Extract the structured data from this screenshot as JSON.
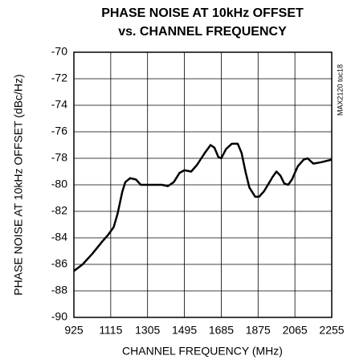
{
  "chart_data": {
    "type": "line",
    "title": [
      "PHASE NOISE AT 10kHz OFFSET",
      "vs. CHANNEL FREQUENCY"
    ],
    "xlabel": "CHANNEL FREQUENCY (MHz)",
    "ylabel": "PHASE NOISE AT 10kHz OFFSET (dBc/Hz)",
    "annotation": "MAX2120 toc18",
    "x": [
      925,
      970,
      1020,
      1070,
      1100,
      1130,
      1150,
      1175,
      1190,
      1215,
      1245,
      1270,
      1305,
      1380,
      1410,
      1440,
      1470,
      1495,
      1530,
      1560,
      1600,
      1630,
      1650,
      1670,
      1685,
      1710,
      1740,
      1770,
      1790,
      1810,
      1830,
      1860,
      1880,
      1905,
      1930,
      1950,
      1970,
      1990,
      2010,
      2030,
      2050,
      2080,
      2110,
      2130,
      2160,
      2200,
      2255
    ],
    "series": [
      {
        "name": "phase noise",
        "color": "#000000",
        "values": [
          -86.5,
          -86.0,
          -85.2,
          -84.3,
          -83.8,
          -83.2,
          -82.2,
          -80.5,
          -79.8,
          -79.5,
          -79.6,
          -80.0,
          -80.0,
          -80.0,
          -80.1,
          -79.8,
          -79.1,
          -78.9,
          -79.0,
          -78.5,
          -77.6,
          -77.0,
          -77.2,
          -77.9,
          -78.0,
          -77.3,
          -76.9,
          -76.9,
          -77.6,
          -79.0,
          -80.2,
          -80.9,
          -80.9,
          -80.5,
          -79.9,
          -79.4,
          -79.0,
          -79.3,
          -79.9,
          -80.0,
          -79.6,
          -78.6,
          -78.1,
          -78.0,
          -78.4,
          -78.3,
          -78.1
        ]
      }
    ],
    "xlim": [
      925,
      2255
    ],
    "xticks": [
      925,
      1115,
      1305,
      1495,
      1685,
      1875,
      2065,
      2255
    ],
    "ylim": [
      -90,
      -70
    ],
    "yticks": [
      -70,
      -72,
      -74,
      -76,
      -78,
      -80,
      -82,
      -84,
      -86,
      -88,
      -90
    ],
    "grid": true
  }
}
